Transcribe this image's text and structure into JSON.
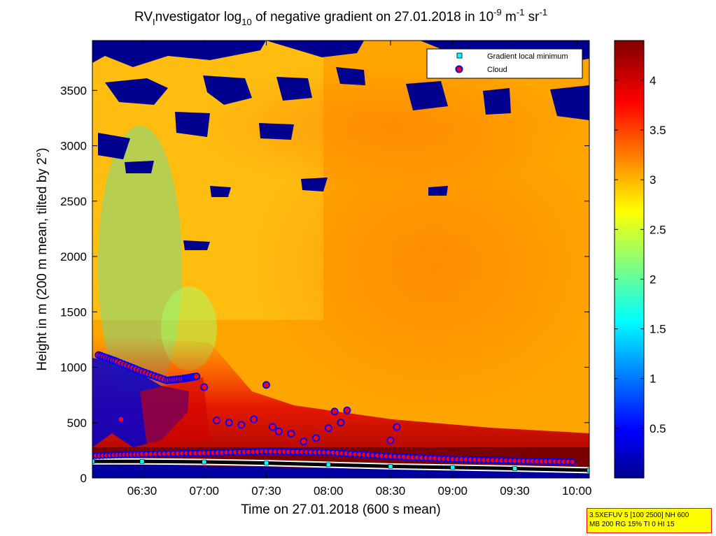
{
  "chart_data": {
    "type": "heatmap",
    "title": {
      "prefix": "RV",
      "prefix_sub": "I",
      "part1": "nvestigator log",
      "log_base": "10",
      "part2": " of negative gradient on 27.01.2018 in 10",
      "exp1": "-9",
      "unit1": " m",
      "exp2": "-1",
      "unit2": " sr",
      "exp3": "-1"
    },
    "xlabel": "Time on 27.01.2018 (600 s mean)",
    "ylabel": "Height in m (200 m mean, tilted by 2°)",
    "x_range_hours": [
      6.1,
      10.1
    ],
    "y_range": [
      0,
      3950
    ],
    "x_ticks": [
      {
        "value": 6.5,
        "label": "06:30"
      },
      {
        "value": 7.0,
        "label": "07:00"
      },
      {
        "value": 7.5,
        "label": "07:30"
      },
      {
        "value": 8.0,
        "label": "08:00"
      },
      {
        "value": 8.5,
        "label": "08:30"
      },
      {
        "value": 9.0,
        "label": "09:00"
      },
      {
        "value": 9.5,
        "label": "09:30"
      },
      {
        "value": 10.0,
        "label": "10:00"
      }
    ],
    "y_ticks": [
      {
        "value": 0,
        "label": "0"
      },
      {
        "value": 500,
        "label": "500"
      },
      {
        "value": 1000,
        "label": "1000"
      },
      {
        "value": 1500,
        "label": "1500"
      },
      {
        "value": 2000,
        "label": "2000"
      },
      {
        "value": 2500,
        "label": "2500"
      },
      {
        "value": 3000,
        "label": "3000"
      },
      {
        "value": 3500,
        "label": "3500"
      }
    ],
    "colorbar": {
      "range": [
        0,
        4.4
      ],
      "colormap": "jet",
      "ticks": [
        {
          "value": 0.5,
          "label": "0.5"
        },
        {
          "value": 1.0,
          "label": "1"
        },
        {
          "value": 1.5,
          "label": "1.5"
        },
        {
          "value": 2.0,
          "label": "2"
        },
        {
          "value": 2.5,
          "label": "2.5"
        },
        {
          "value": 3.0,
          "label": "3"
        },
        {
          "value": 3.5,
          "label": "3.5"
        },
        {
          "value": 4.0,
          "label": "4"
        }
      ]
    },
    "legend": {
      "placement": "top-right",
      "entries": [
        {
          "label": "Gradient local minimum",
          "marker": "square",
          "color": "#00ffff"
        },
        {
          "label": "Cloud",
          "marker": "circle",
          "color": "#ff0000",
          "edge": "#0000ff"
        }
      ]
    },
    "gradient_local_minimum": {
      "x": [
        6.1,
        6.5,
        7.0,
        7.5,
        8.0,
        8.5,
        9.0,
        9.5,
        10.1
      ],
      "y": [
        150,
        150,
        145,
        135,
        120,
        105,
        95,
        85,
        70
      ]
    },
    "cloud_lower_band": {
      "x": [
        6.1,
        6.5,
        7.0,
        7.5,
        8.0,
        8.5,
        9.0,
        9.5,
        10.0
      ],
      "y": [
        200,
        215,
        225,
        240,
        230,
        195,
        170,
        155,
        145
      ]
    },
    "cloud_upper_layer": {
      "x": [
        6.15,
        6.3,
        6.5,
        6.7,
        6.85,
        6.95
      ],
      "y": [
        1110,
        1050,
        960,
        880,
        900,
        920
      ]
    },
    "cloud_mid_points": {
      "x": [
        6.33,
        7.0,
        7.1,
        7.2,
        7.3,
        7.4,
        7.5,
        7.55,
        7.6,
        7.7,
        7.8,
        7.9,
        8.0,
        8.05,
        8.1,
        8.15,
        8.5,
        8.55
      ],
      "y": [
        530,
        820,
        520,
        500,
        480,
        530,
        840,
        460,
        420,
        400,
        330,
        360,
        450,
        600,
        500,
        610,
        340,
        460
      ]
    },
    "colorbar_shown": [
      0,
      4.4
    ],
    "colors": {
      "background_field": "#ffaa00",
      "cloud_fill": "#ff0000",
      "cloud_edge": "#0000ff",
      "minimum_line": "#000000",
      "param_box_bg": "#ffff00",
      "param_box_border": "#ff0000"
    }
  },
  "param_box": {
    "line1": "3.5XEFUV 5 [100 2500] NH 600",
    "line2": "MB 200 RG 15% TI 0 HI 15"
  }
}
